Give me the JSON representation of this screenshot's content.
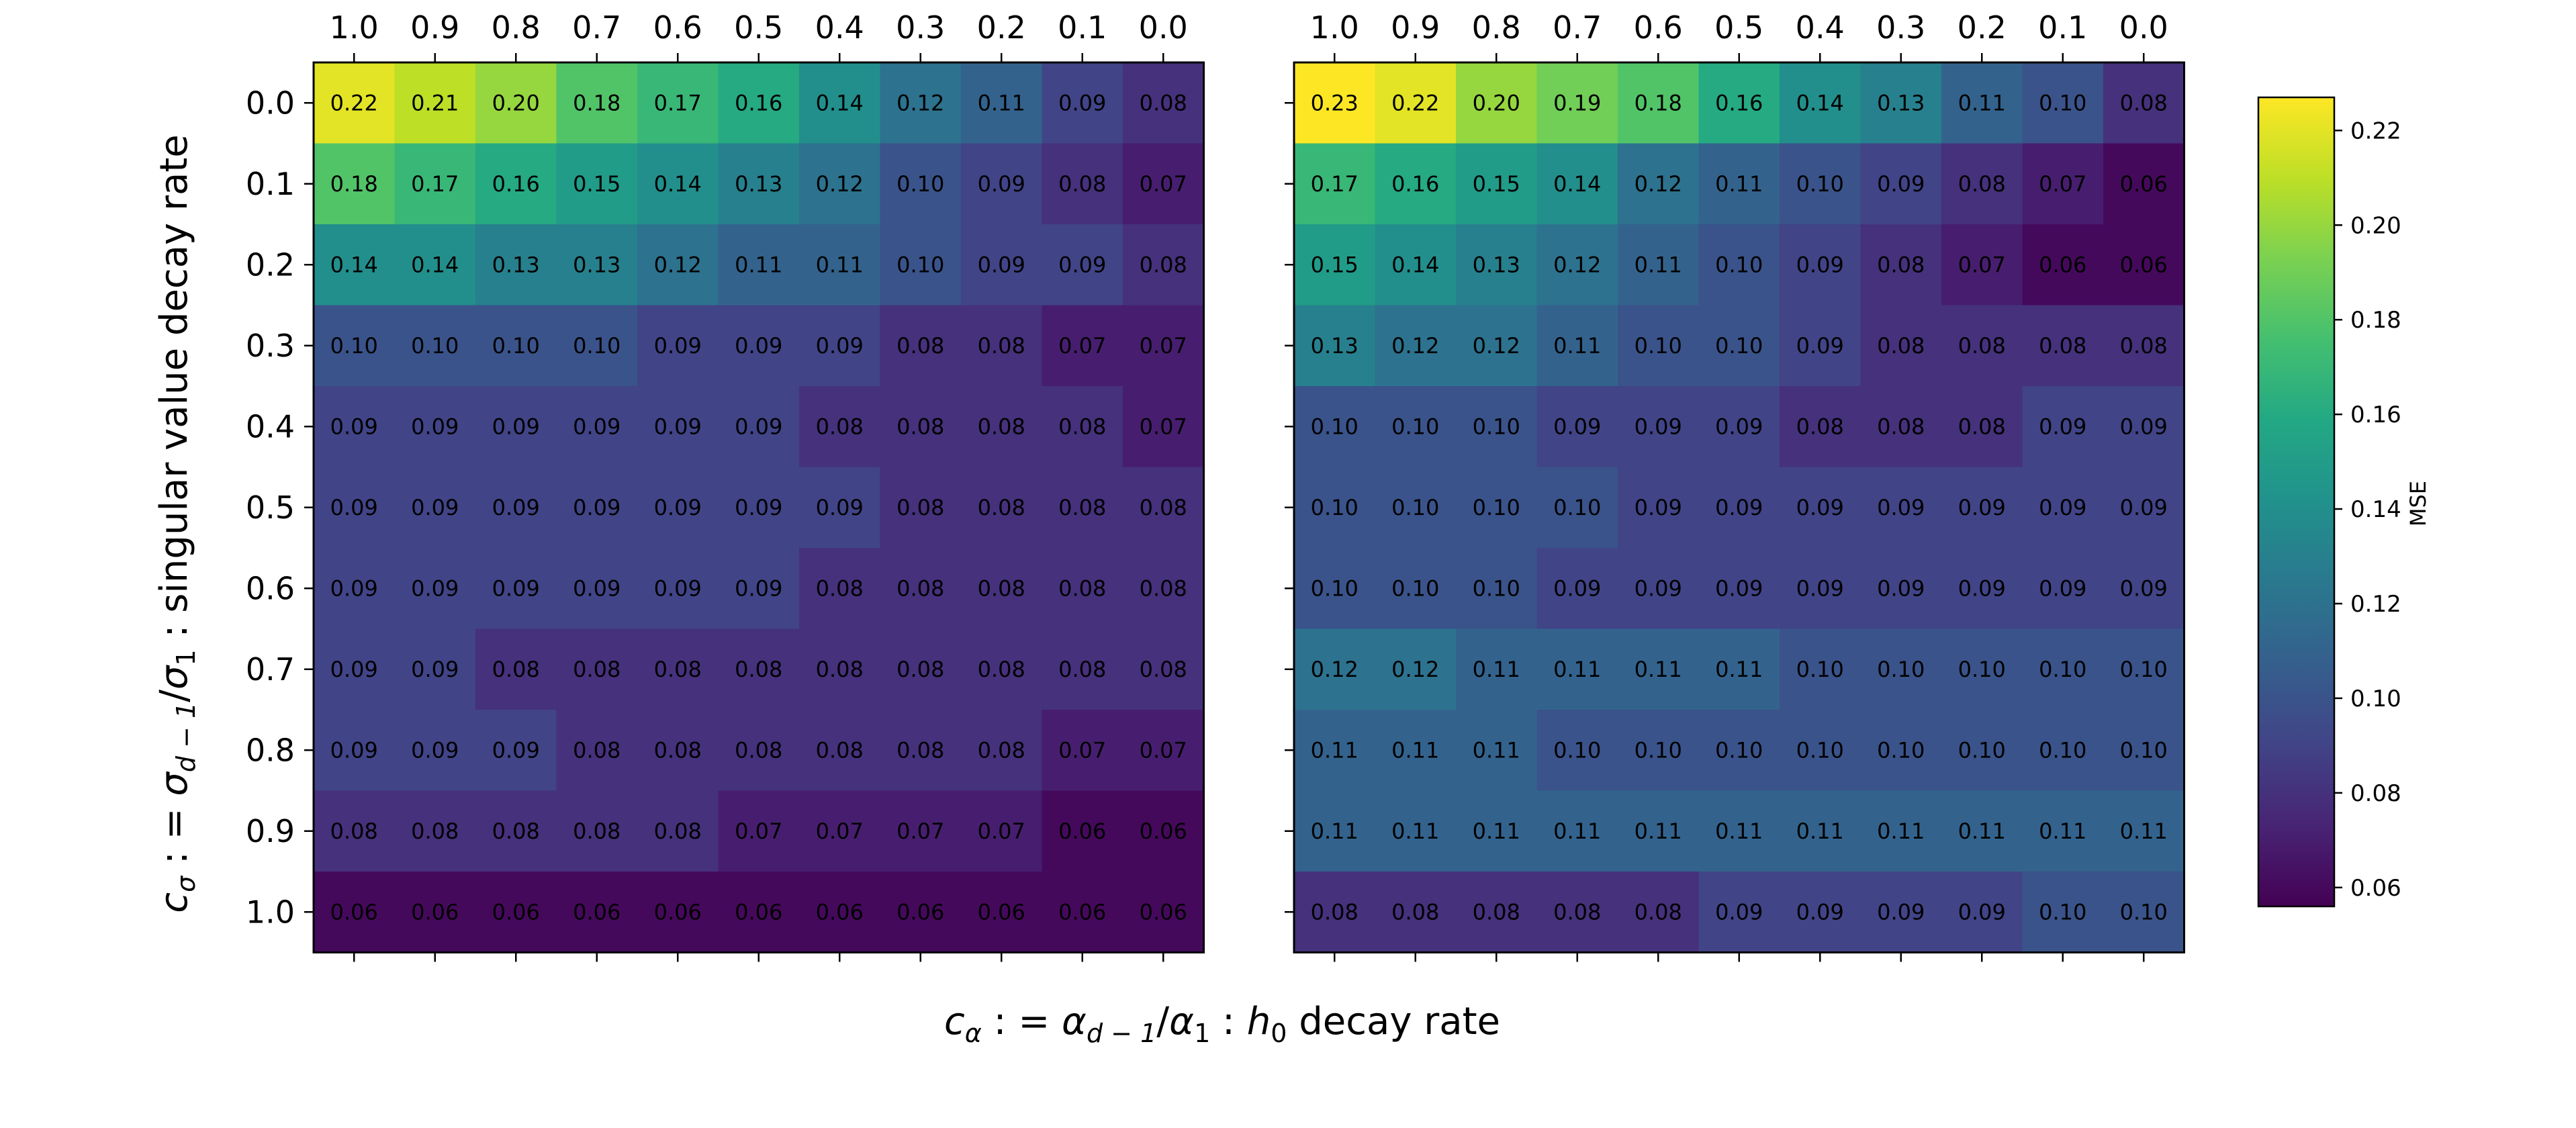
{
  "chart_data": {
    "type": "heatmap",
    "x_tick_labels": [
      "1.0",
      "0.9",
      "0.8",
      "0.7",
      "0.6",
      "0.5",
      "0.4",
      "0.3",
      "0.2",
      "0.1",
      "0.0"
    ],
    "y_tick_labels": [
      "0.0",
      "0.1",
      "0.2",
      "0.3",
      "0.4",
      "0.5",
      "0.6",
      "0.7",
      "0.8",
      "0.9",
      "1.0"
    ],
    "xlabel": "c_α : = α_{d−1}/α_1 : h_0 decay rate",
    "ylabel": "c_σ : = σ_{d−1}/σ_1 : singular value decay rate",
    "colorbar": {
      "label": "MSE",
      "ticks": [
        "0.06",
        "0.08",
        "0.10",
        "0.12",
        "0.14",
        "0.16",
        "0.18",
        "0.20",
        "0.22"
      ],
      "range": [
        0.056,
        0.227
      ],
      "colormap": "viridis"
    },
    "heatmaps": [
      {
        "values": [
          [
            0.22,
            0.21,
            0.2,
            0.18,
            0.17,
            0.16,
            0.14,
            0.12,
            0.11,
            0.09,
            0.08
          ],
          [
            0.18,
            0.17,
            0.16,
            0.15,
            0.14,
            0.13,
            0.12,
            0.1,
            0.09,
            0.08,
            0.07
          ],
          [
            0.14,
            0.14,
            0.13,
            0.13,
            0.12,
            0.11,
            0.11,
            0.1,
            0.09,
            0.09,
            0.08
          ],
          [
            0.1,
            0.1,
            0.1,
            0.1,
            0.09,
            0.09,
            0.09,
            0.08,
            0.08,
            0.07,
            0.07
          ],
          [
            0.09,
            0.09,
            0.09,
            0.09,
            0.09,
            0.09,
            0.08,
            0.08,
            0.08,
            0.08,
            0.07
          ],
          [
            0.09,
            0.09,
            0.09,
            0.09,
            0.09,
            0.09,
            0.09,
            0.08,
            0.08,
            0.08,
            0.08
          ],
          [
            0.09,
            0.09,
            0.09,
            0.09,
            0.09,
            0.09,
            0.08,
            0.08,
            0.08,
            0.08,
            0.08
          ],
          [
            0.09,
            0.09,
            0.08,
            0.08,
            0.08,
            0.08,
            0.08,
            0.08,
            0.08,
            0.08,
            0.08
          ],
          [
            0.09,
            0.09,
            0.09,
            0.08,
            0.08,
            0.08,
            0.08,
            0.08,
            0.08,
            0.07,
            0.07
          ],
          [
            0.08,
            0.08,
            0.08,
            0.08,
            0.08,
            0.07,
            0.07,
            0.07,
            0.07,
            0.06,
            0.06
          ],
          [
            0.06,
            0.06,
            0.06,
            0.06,
            0.06,
            0.06,
            0.06,
            0.06,
            0.06,
            0.06,
            0.06
          ]
        ]
      },
      {
        "values": [
          [
            0.23,
            0.22,
            0.2,
            0.19,
            0.18,
            0.16,
            0.14,
            0.13,
            0.11,
            0.1,
            0.08
          ],
          [
            0.17,
            0.16,
            0.15,
            0.14,
            0.12,
            0.11,
            0.1,
            0.09,
            0.08,
            0.07,
            0.06
          ],
          [
            0.15,
            0.14,
            0.13,
            0.12,
            0.11,
            0.1,
            0.09,
            0.08,
            0.07,
            0.06,
            0.06
          ],
          [
            0.13,
            0.12,
            0.12,
            0.11,
            0.1,
            0.1,
            0.09,
            0.08,
            0.08,
            0.08,
            0.08
          ],
          [
            0.1,
            0.1,
            0.1,
            0.09,
            0.09,
            0.09,
            0.08,
            0.08,
            0.08,
            0.09,
            0.09
          ],
          [
            0.1,
            0.1,
            0.1,
            0.1,
            0.09,
            0.09,
            0.09,
            0.09,
            0.09,
            0.09,
            0.09
          ],
          [
            0.1,
            0.1,
            0.1,
            0.09,
            0.09,
            0.09,
            0.09,
            0.09,
            0.09,
            0.09,
            0.09
          ],
          [
            0.12,
            0.12,
            0.11,
            0.11,
            0.11,
            0.11,
            0.1,
            0.1,
            0.1,
            0.1,
            0.1
          ],
          [
            0.11,
            0.11,
            0.11,
            0.1,
            0.1,
            0.1,
            0.1,
            0.1,
            0.1,
            0.1,
            0.1
          ],
          [
            0.11,
            0.11,
            0.11,
            0.11,
            0.11,
            0.11,
            0.11,
            0.11,
            0.11,
            0.11,
            0.11
          ],
          [
            0.08,
            0.08,
            0.08,
            0.08,
            0.08,
            0.09,
            0.09,
            0.09,
            0.09,
            0.1,
            0.1
          ]
        ]
      }
    ]
  }
}
